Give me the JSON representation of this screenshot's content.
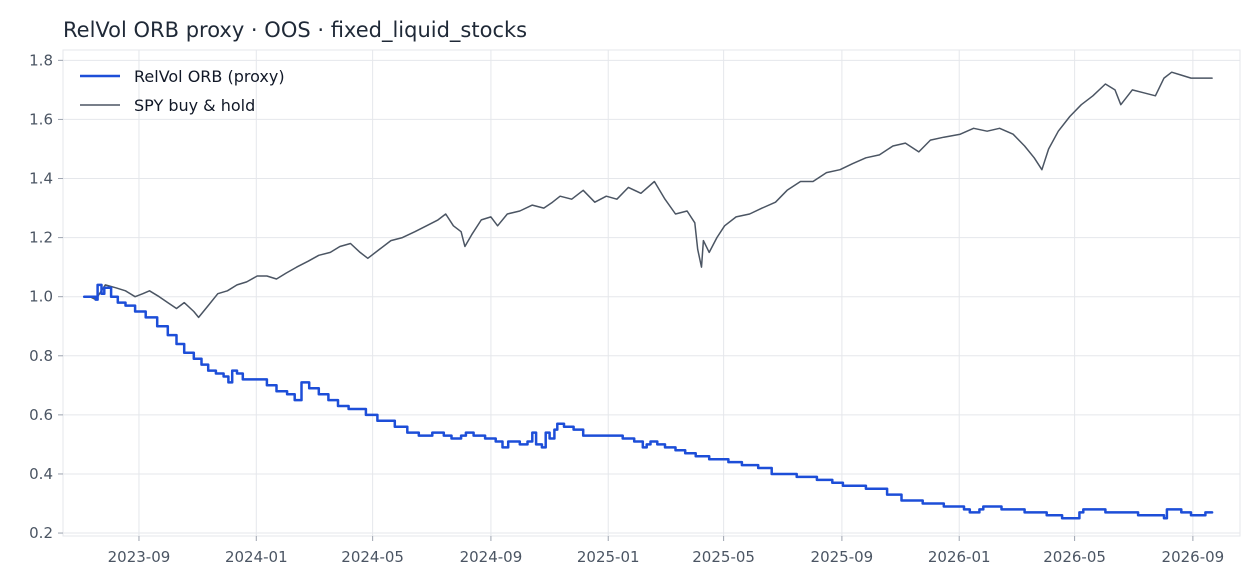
{
  "chart_data": {
    "type": "line",
    "title": "RelVol ORB proxy · OOS · fixed_liquid_stocks",
    "xlabel": "",
    "ylabel": "",
    "x_axis": "date",
    "xlim": [
      "2023-06-14",
      "2026-10-20"
    ],
    "ylim": [
      0.19,
      1.835
    ],
    "xticks": [
      "2023-09-01",
      "2024-01-01",
      "2024-05-01",
      "2024-09-01",
      "2025-01-01",
      "2025-05-01",
      "2025-09-01",
      "2026-01-01",
      "2026-05-01",
      "2026-09-01"
    ],
    "xtick_labels": [
      "2023-09",
      "2024-01",
      "2024-05",
      "2024-09",
      "2025-01",
      "2025-05",
      "2025-09",
      "2026-01",
      "2026-05",
      "2026-09"
    ],
    "yticks": [
      0.2,
      0.4,
      0.6,
      0.8,
      1.0,
      1.2,
      1.4,
      1.6,
      1.8
    ],
    "ytick_labels": [
      "0.2",
      "0.4",
      "0.6",
      "0.8",
      "1.0",
      "1.2",
      "1.4",
      "1.6",
      "1.8"
    ],
    "grid": true,
    "legend_position": "top-left",
    "series": [
      {
        "name": "RelVol ORB (proxy)",
        "color": "#1d4ed8",
        "style": "step",
        "points": [
          [
            "2023-07-06",
            1.0
          ],
          [
            "2023-07-18",
            0.99
          ],
          [
            "2023-07-20",
            1.04
          ],
          [
            "2023-07-24",
            1.01
          ],
          [
            "2023-07-27",
            1.03
          ],
          [
            "2023-08-03",
            1.0
          ],
          [
            "2023-08-10",
            0.98
          ],
          [
            "2023-08-18",
            0.97
          ],
          [
            "2023-08-28",
            0.95
          ],
          [
            "2023-09-08",
            0.93
          ],
          [
            "2023-09-20",
            0.9
          ],
          [
            "2023-10-01",
            0.87
          ],
          [
            "2023-10-10",
            0.84
          ],
          [
            "2023-10-18",
            0.81
          ],
          [
            "2023-10-28",
            0.79
          ],
          [
            "2023-11-05",
            0.77
          ],
          [
            "2023-11-12",
            0.75
          ],
          [
            "2023-11-20",
            0.74
          ],
          [
            "2023-11-28",
            0.73
          ],
          [
            "2023-12-03",
            0.71
          ],
          [
            "2023-12-07",
            0.75
          ],
          [
            "2023-12-12",
            0.74
          ],
          [
            "2023-12-18",
            0.72
          ],
          [
            "2024-01-05",
            0.72
          ],
          [
            "2024-01-12",
            0.7
          ],
          [
            "2024-01-22",
            0.68
          ],
          [
            "2024-02-02",
            0.67
          ],
          [
            "2024-02-10",
            0.65
          ],
          [
            "2024-02-17",
            0.71
          ],
          [
            "2024-02-25",
            0.69
          ],
          [
            "2024-03-06",
            0.67
          ],
          [
            "2024-03-16",
            0.65
          ],
          [
            "2024-03-26",
            0.63
          ],
          [
            "2024-04-06",
            0.62
          ],
          [
            "2024-04-24",
            0.6
          ],
          [
            "2024-05-06",
            0.58
          ],
          [
            "2024-05-24",
            0.56
          ],
          [
            "2024-06-06",
            0.54
          ],
          [
            "2024-06-18",
            0.53
          ],
          [
            "2024-07-02",
            0.54
          ],
          [
            "2024-07-14",
            0.53
          ],
          [
            "2024-07-22",
            0.52
          ],
          [
            "2024-08-01",
            0.53
          ],
          [
            "2024-08-06",
            0.54
          ],
          [
            "2024-08-14",
            0.53
          ],
          [
            "2024-08-26",
            0.52
          ],
          [
            "2024-09-06",
            0.51
          ],
          [
            "2024-09-13",
            0.49
          ],
          [
            "2024-09-19",
            0.51
          ],
          [
            "2024-10-01",
            0.5
          ],
          [
            "2024-10-09",
            0.51
          ],
          [
            "2024-10-14",
            0.54
          ],
          [
            "2024-10-18",
            0.5
          ],
          [
            "2024-10-24",
            0.49
          ],
          [
            "2024-10-28",
            0.54
          ],
          [
            "2024-11-01",
            0.52
          ],
          [
            "2024-11-06",
            0.55
          ],
          [
            "2024-11-09",
            0.57
          ],
          [
            "2024-11-16",
            0.56
          ],
          [
            "2024-11-26",
            0.55
          ],
          [
            "2024-12-06",
            0.53
          ],
          [
            "2025-01-16",
            0.52
          ],
          [
            "2025-01-28",
            0.51
          ],
          [
            "2025-02-06",
            0.49
          ],
          [
            "2025-02-10",
            0.5
          ],
          [
            "2025-02-14",
            0.51
          ],
          [
            "2025-02-21",
            0.5
          ],
          [
            "2025-03-01",
            0.49
          ],
          [
            "2025-03-12",
            0.48
          ],
          [
            "2025-03-22",
            0.47
          ],
          [
            "2025-04-02",
            0.46
          ],
          [
            "2025-04-16",
            0.45
          ],
          [
            "2025-05-06",
            0.44
          ],
          [
            "2025-05-20",
            0.43
          ],
          [
            "2025-06-06",
            0.42
          ],
          [
            "2025-06-20",
            0.4
          ],
          [
            "2025-07-16",
            0.39
          ],
          [
            "2025-08-06",
            0.38
          ],
          [
            "2025-08-22",
            0.37
          ],
          [
            "2025-09-02",
            0.36
          ],
          [
            "2025-09-26",
            0.35
          ],
          [
            "2025-10-18",
            0.33
          ],
          [
            "2025-11-02",
            0.31
          ],
          [
            "2025-11-24",
            0.3
          ],
          [
            "2025-12-16",
            0.29
          ],
          [
            "2026-01-06",
            0.28
          ],
          [
            "2026-01-12",
            0.27
          ],
          [
            "2026-01-22",
            0.28
          ],
          [
            "2026-01-26",
            0.29
          ],
          [
            "2026-02-14",
            0.28
          ],
          [
            "2026-03-10",
            0.27
          ],
          [
            "2026-04-02",
            0.26
          ],
          [
            "2026-04-18",
            0.25
          ],
          [
            "2026-05-06",
            0.27
          ],
          [
            "2026-05-10",
            0.28
          ],
          [
            "2026-06-02",
            0.27
          ],
          [
            "2026-07-06",
            0.26
          ],
          [
            "2026-08-02",
            0.25
          ],
          [
            "2026-08-05",
            0.28
          ],
          [
            "2026-08-20",
            0.27
          ],
          [
            "2026-08-30",
            0.26
          ],
          [
            "2026-09-14",
            0.27
          ],
          [
            "2026-09-21",
            0.27
          ]
        ]
      },
      {
        "name": "SPY buy & hold",
        "color": "#4b5563",
        "style": "line",
        "points": [
          [
            "2023-07-06",
            1.0
          ],
          [
            "2023-07-12",
            1.0
          ],
          [
            "2023-07-18",
            0.99
          ],
          [
            "2023-07-22",
            1.01
          ],
          [
            "2023-07-28",
            1.04
          ],
          [
            "2023-08-08",
            1.03
          ],
          [
            "2023-08-18",
            1.02
          ],
          [
            "2023-08-28",
            1.0
          ],
          [
            "2023-09-05",
            1.01
          ],
          [
            "2023-09-12",
            1.02
          ],
          [
            "2023-09-22",
            1.0
          ],
          [
            "2023-10-01",
            0.98
          ],
          [
            "2023-10-10",
            0.96
          ],
          [
            "2023-10-18",
            0.98
          ],
          [
            "2023-10-28",
            0.95
          ],
          [
            "2023-11-02",
            0.93
          ],
          [
            "2023-11-12",
            0.97
          ],
          [
            "2023-11-22",
            1.01
          ],
          [
            "2023-12-02",
            1.02
          ],
          [
            "2023-12-12",
            1.04
          ],
          [
            "2023-12-22",
            1.05
          ],
          [
            "2024-01-02",
            1.07
          ],
          [
            "2024-01-12",
            1.07
          ],
          [
            "2024-01-22",
            1.06
          ],
          [
            "2024-02-01",
            1.08
          ],
          [
            "2024-02-12",
            1.1
          ],
          [
            "2024-02-24",
            1.12
          ],
          [
            "2024-03-06",
            1.14
          ],
          [
            "2024-03-18",
            1.15
          ],
          [
            "2024-03-28",
            1.17
          ],
          [
            "2024-04-08",
            1.18
          ],
          [
            "2024-04-18",
            1.15
          ],
          [
            "2024-04-26",
            1.13
          ],
          [
            "2024-05-08",
            1.16
          ],
          [
            "2024-05-20",
            1.19
          ],
          [
            "2024-06-01",
            1.2
          ],
          [
            "2024-06-14",
            1.22
          ],
          [
            "2024-06-26",
            1.24
          ],
          [
            "2024-07-08",
            1.26
          ],
          [
            "2024-07-16",
            1.28
          ],
          [
            "2024-07-24",
            1.24
          ],
          [
            "2024-08-01",
            1.22
          ],
          [
            "2024-08-05",
            1.17
          ],
          [
            "2024-08-12",
            1.21
          ],
          [
            "2024-08-22",
            1.26
          ],
          [
            "2024-09-01",
            1.27
          ],
          [
            "2024-09-08",
            1.24
          ],
          [
            "2024-09-18",
            1.28
          ],
          [
            "2024-10-01",
            1.29
          ],
          [
            "2024-10-14",
            1.31
          ],
          [
            "2024-10-26",
            1.3
          ],
          [
            "2024-11-04",
            1.32
          ],
          [
            "2024-11-12",
            1.34
          ],
          [
            "2024-11-24",
            1.33
          ],
          [
            "2024-12-06",
            1.36
          ],
          [
            "2024-12-18",
            1.32
          ],
          [
            "2024-12-30",
            1.34
          ],
          [
            "2025-01-10",
            1.33
          ],
          [
            "2025-01-22",
            1.37
          ],
          [
            "2025-02-04",
            1.35
          ],
          [
            "2025-02-18",
            1.39
          ],
          [
            "2025-03-01",
            1.33
          ],
          [
            "2025-03-12",
            1.28
          ],
          [
            "2025-03-24",
            1.29
          ],
          [
            "2025-04-01",
            1.25
          ],
          [
            "2025-04-04",
            1.16
          ],
          [
            "2025-04-08",
            1.1
          ],
          [
            "2025-04-10",
            1.19
          ],
          [
            "2025-04-16",
            1.15
          ],
          [
            "2025-04-24",
            1.2
          ],
          [
            "2025-05-02",
            1.24
          ],
          [
            "2025-05-14",
            1.27
          ],
          [
            "2025-05-28",
            1.28
          ],
          [
            "2025-06-10",
            1.3
          ],
          [
            "2025-06-24",
            1.32
          ],
          [
            "2025-07-06",
            1.36
          ],
          [
            "2025-07-20",
            1.39
          ],
          [
            "2025-08-02",
            1.39
          ],
          [
            "2025-08-16",
            1.42
          ],
          [
            "2025-08-30",
            1.43
          ],
          [
            "2025-09-12",
            1.45
          ],
          [
            "2025-09-26",
            1.47
          ],
          [
            "2025-10-10",
            1.48
          ],
          [
            "2025-10-24",
            1.51
          ],
          [
            "2025-11-06",
            1.52
          ],
          [
            "2025-11-20",
            1.49
          ],
          [
            "2025-12-02",
            1.53
          ],
          [
            "2025-12-16",
            1.54
          ],
          [
            "2026-01-02",
            1.55
          ],
          [
            "2026-01-16",
            1.57
          ],
          [
            "2026-01-30",
            1.56
          ],
          [
            "2026-02-12",
            1.57
          ],
          [
            "2026-02-26",
            1.55
          ],
          [
            "2026-03-10",
            1.51
          ],
          [
            "2026-03-20",
            1.47
          ],
          [
            "2026-03-28",
            1.43
          ],
          [
            "2026-04-04",
            1.5
          ],
          [
            "2026-04-14",
            1.56
          ],
          [
            "2026-04-26",
            1.61
          ],
          [
            "2026-05-08",
            1.65
          ],
          [
            "2026-05-20",
            1.68
          ],
          [
            "2026-06-02",
            1.72
          ],
          [
            "2026-06-12",
            1.7
          ],
          [
            "2026-06-18",
            1.65
          ],
          [
            "2026-06-30",
            1.7
          ],
          [
            "2026-07-12",
            1.69
          ],
          [
            "2026-07-24",
            1.68
          ],
          [
            "2026-08-02",
            1.74
          ],
          [
            "2026-08-10",
            1.76
          ],
          [
            "2026-08-20",
            1.75
          ],
          [
            "2026-08-30",
            1.74
          ],
          [
            "2026-09-21",
            1.74
          ]
        ]
      }
    ]
  }
}
